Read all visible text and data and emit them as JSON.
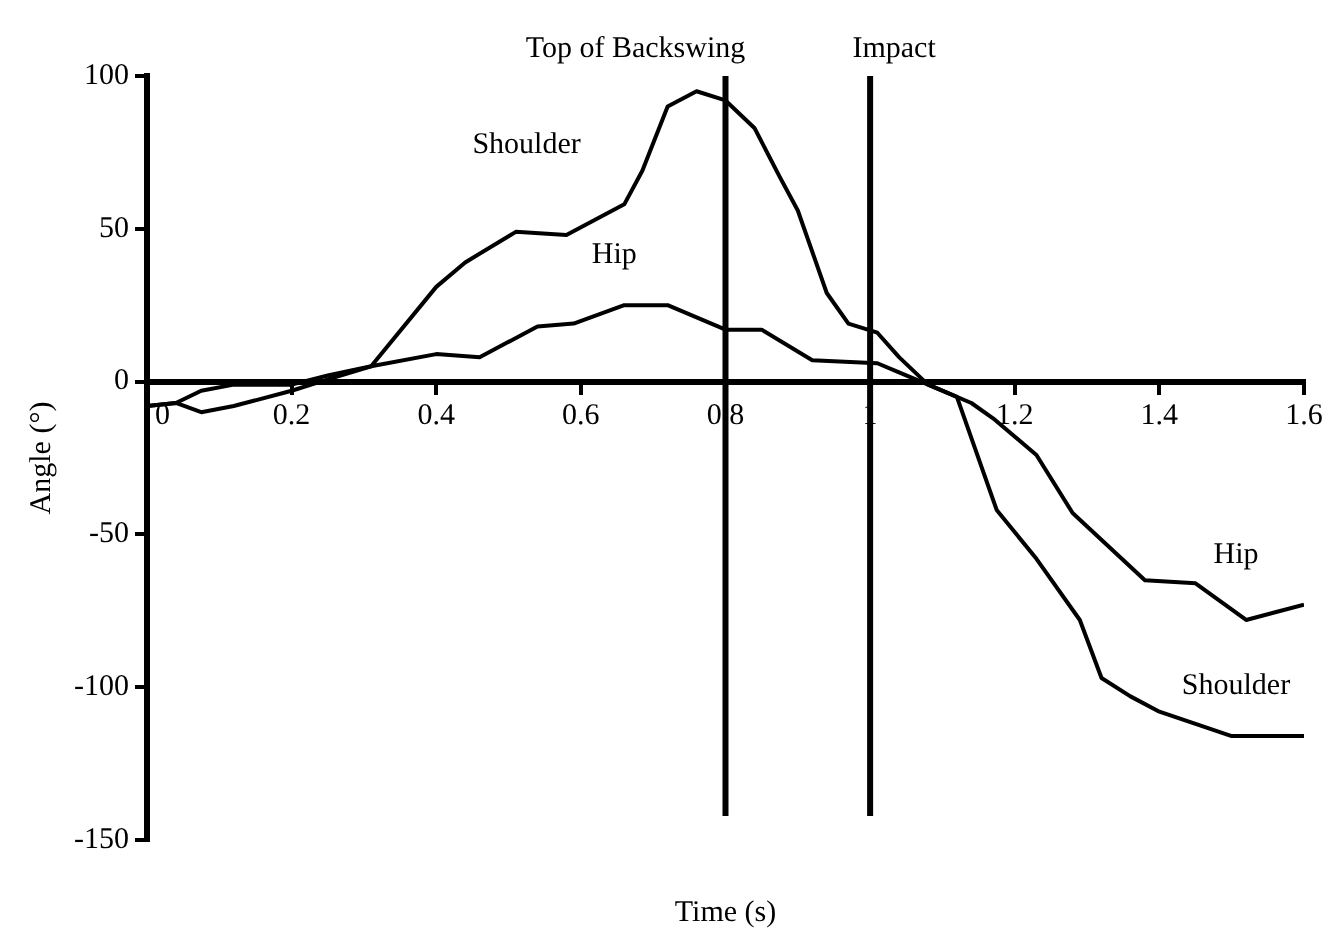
{
  "chart_data": {
    "type": "line",
    "xlabel": "Time (s)",
    "ylabel": "Angle (°)",
    "xlim": [
      0,
      1.6
    ],
    "ylim": [
      -150,
      100
    ],
    "xticks": [
      0,
      0.2,
      0.4,
      0.6,
      0.8,
      1,
      1.2,
      1.4,
      1.6
    ],
    "yticks": [
      -150,
      -100,
      -50,
      0,
      50,
      100
    ],
    "marker": "none",
    "line_style": "solid",
    "series": [
      {
        "name": "Shoulder",
        "color": "#000000",
        "x": [
          0,
          0.04,
          0.075,
          0.12,
          0.2,
          0.24,
          0.31,
          0.4,
          0.44,
          0.51,
          0.58,
          0.66,
          0.685,
          0.72,
          0.76,
          0.8,
          0.84,
          0.875,
          0.9,
          0.94,
          0.97,
          1.01,
          1.04,
          1.08,
          1.12,
          1.175,
          1.23,
          1.29,
          1.32,
          1.36,
          1.4,
          1.5,
          1.6
        ],
        "values": [
          -8,
          -7,
          -10,
          -8,
          -3,
          0,
          5,
          31,
          39,
          49,
          48,
          58,
          69,
          90,
          95,
          92,
          83,
          67,
          56,
          29,
          19,
          16,
          8,
          -1,
          -5,
          -42,
          -58,
          -78,
          -97,
          -103,
          -108,
          -116,
          -116
        ]
      },
      {
        "name": "Hip",
        "color": "#000000",
        "x": [
          0,
          0.04,
          0.075,
          0.12,
          0.2,
          0.25,
          0.31,
          0.4,
          0.46,
          0.54,
          0.59,
          0.66,
          0.72,
          0.8,
          0.85,
          0.92,
          1.01,
          1.04,
          1.09,
          1.14,
          1.17,
          1.23,
          1.28,
          1.38,
          1.45,
          1.52,
          1.6
        ],
        "values": [
          -8,
          -7,
          -3,
          -1,
          -1,
          2,
          5,
          9,
          8,
          18,
          19,
          25,
          25,
          17,
          17,
          7,
          6,
          3,
          -2,
          -7,
          -12,
          -24,
          -43,
          -65,
          -66,
          -78,
          -73
        ]
      }
    ],
    "ref_lines": [
      {
        "axis": "x",
        "value": 0.8,
        "label": "Top of Backswing"
      },
      {
        "axis": "x",
        "value": 1,
        "label": "Impact"
      }
    ]
  }
}
